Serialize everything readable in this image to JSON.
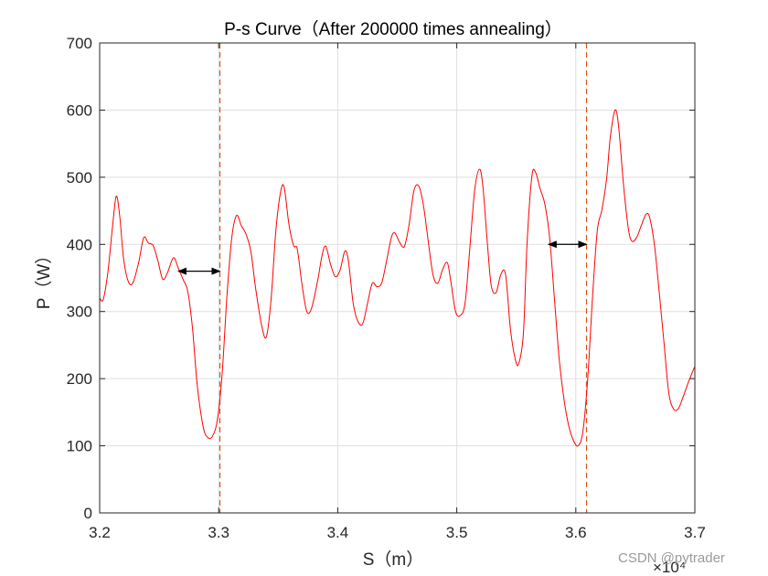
{
  "chart_data": {
    "type": "line",
    "title": "P-s Curve（After 200000 times annealing）",
    "xlabel": "S（m）",
    "ylabel": "P（W）",
    "x_exponent_label": "×10⁴",
    "xlim": [
      3.2,
      3.7
    ],
    "ylim": [
      0,
      700
    ],
    "xticks": [
      3.2,
      3.3,
      3.4,
      3.5,
      3.6,
      3.7
    ],
    "xtick_labels": [
      "3.2",
      "3.3",
      "3.4",
      "3.5",
      "3.6",
      "3.7"
    ],
    "yticks": [
      0,
      100,
      200,
      300,
      400,
      500,
      600,
      700
    ],
    "ytick_labels": [
      "0",
      "100",
      "200",
      "300",
      "400",
      "500",
      "600",
      "700"
    ],
    "grid": true,
    "series_color": "#ff0000",
    "series": [
      {
        "points": [
          [
            3.2,
            320
          ],
          [
            3.203,
            318
          ],
          [
            3.207,
            360
          ],
          [
            3.211,
            430
          ],
          [
            3.214,
            472
          ],
          [
            3.217,
            440
          ],
          [
            3.22,
            380
          ],
          [
            3.224,
            345
          ],
          [
            3.228,
            343
          ],
          [
            3.233,
            375
          ],
          [
            3.237,
            410
          ],
          [
            3.241,
            402
          ],
          [
            3.245,
            398
          ],
          [
            3.249,
            375
          ],
          [
            3.253,
            348
          ],
          [
            3.257,
            358
          ],
          [
            3.262,
            380
          ],
          [
            3.266,
            365
          ],
          [
            3.27,
            348
          ],
          [
            3.274,
            330
          ],
          [
            3.278,
            275
          ],
          [
            3.282,
            190
          ],
          [
            3.287,
            128
          ],
          [
            3.291,
            112
          ],
          [
            3.295,
            115
          ],
          [
            3.299,
            140
          ],
          [
            3.303,
            210
          ],
          [
            3.307,
            325
          ],
          [
            3.311,
            410
          ],
          [
            3.315,
            443
          ],
          [
            3.319,
            428
          ],
          [
            3.323,
            415
          ],
          [
            3.327,
            390
          ],
          [
            3.331,
            335
          ],
          [
            3.336,
            280
          ],
          [
            3.34,
            262
          ],
          [
            3.344,
            318
          ],
          [
            3.348,
            420
          ],
          [
            3.352,
            478
          ],
          [
            3.355,
            485
          ],
          [
            3.359,
            430
          ],
          [
            3.363,
            398
          ],
          [
            3.366,
            393
          ],
          [
            3.37,
            340
          ],
          [
            3.374,
            300
          ],
          [
            3.378,
            305
          ],
          [
            3.383,
            345
          ],
          [
            3.387,
            385
          ],
          [
            3.39,
            397
          ],
          [
            3.394,
            370
          ],
          [
            3.398,
            352
          ],
          [
            3.402,
            362
          ],
          [
            3.406,
            390
          ],
          [
            3.409,
            375
          ],
          [
            3.413,
            312
          ],
          [
            3.417,
            285
          ],
          [
            3.421,
            282
          ],
          [
            3.425,
            312
          ],
          [
            3.429,
            342
          ],
          [
            3.433,
            337
          ],
          [
            3.437,
            343
          ],
          [
            3.441,
            375
          ],
          [
            3.445,
            410
          ],
          [
            3.448,
            417
          ],
          [
            3.452,
            403
          ],
          [
            3.456,
            397
          ],
          [
            3.46,
            430
          ],
          [
            3.464,
            480
          ],
          [
            3.468,
            487
          ],
          [
            3.472,
            458
          ],
          [
            3.476,
            405
          ],
          [
            3.48,
            355
          ],
          [
            3.484,
            342
          ],
          [
            3.488,
            362
          ],
          [
            3.492,
            373
          ],
          [
            3.495,
            345
          ],
          [
            3.499,
            300
          ],
          [
            3.503,
            294
          ],
          [
            3.507,
            313
          ],
          [
            3.511,
            395
          ],
          [
            3.515,
            480
          ],
          [
            3.519,
            512
          ],
          [
            3.522,
            485
          ],
          [
            3.526,
            395
          ],
          [
            3.529,
            338
          ],
          [
            3.533,
            328
          ],
          [
            3.537,
            355
          ],
          [
            3.541,
            355
          ],
          [
            3.545,
            275
          ],
          [
            3.549,
            230
          ],
          [
            3.552,
            222
          ],
          [
            3.556,
            268
          ],
          [
            3.559,
            400
          ],
          [
            3.563,
            500
          ],
          [
            3.566,
            508
          ],
          [
            3.57,
            483
          ],
          [
            3.574,
            460
          ],
          [
            3.578,
            410
          ],
          [
            3.582,
            320
          ],
          [
            3.586,
            230
          ],
          [
            3.59,
            170
          ],
          [
            3.594,
            130
          ],
          [
            3.598,
            108
          ],
          [
            3.602,
            100
          ],
          [
            3.606,
            122
          ],
          [
            3.61,
            200
          ],
          [
            3.614,
            320
          ],
          [
            3.618,
            420
          ],
          [
            3.622,
            452
          ],
          [
            3.626,
            500
          ],
          [
            3.629,
            560
          ],
          [
            3.633,
            600
          ],
          [
            3.636,
            575
          ],
          [
            3.64,
            490
          ],
          [
            3.644,
            425
          ],
          [
            3.647,
            405
          ],
          [
            3.651,
            410
          ],
          [
            3.655,
            428
          ],
          [
            3.659,
            445
          ],
          [
            3.662,
            440
          ],
          [
            3.666,
            400
          ],
          [
            3.67,
            330
          ],
          [
            3.674,
            255
          ],
          [
            3.678,
            180
          ],
          [
            3.682,
            155
          ],
          [
            3.686,
            155
          ],
          [
            3.69,
            172
          ],
          [
            3.694,
            192
          ],
          [
            3.698,
            210
          ],
          [
            3.7,
            218
          ]
        ]
      }
    ],
    "vertical_lines": [
      {
        "x": 3.301,
        "style": "dashed",
        "color": "#d95319"
      },
      {
        "x": 3.609,
        "style": "dashed",
        "color": "#d95319"
      }
    ],
    "double_arrows": [
      {
        "x1": 3.266,
        "x2": 3.301,
        "y": 360
      },
      {
        "x1": 3.577,
        "x2": 3.609,
        "y": 400
      }
    ]
  },
  "watermark": "CSDN @pytrader"
}
